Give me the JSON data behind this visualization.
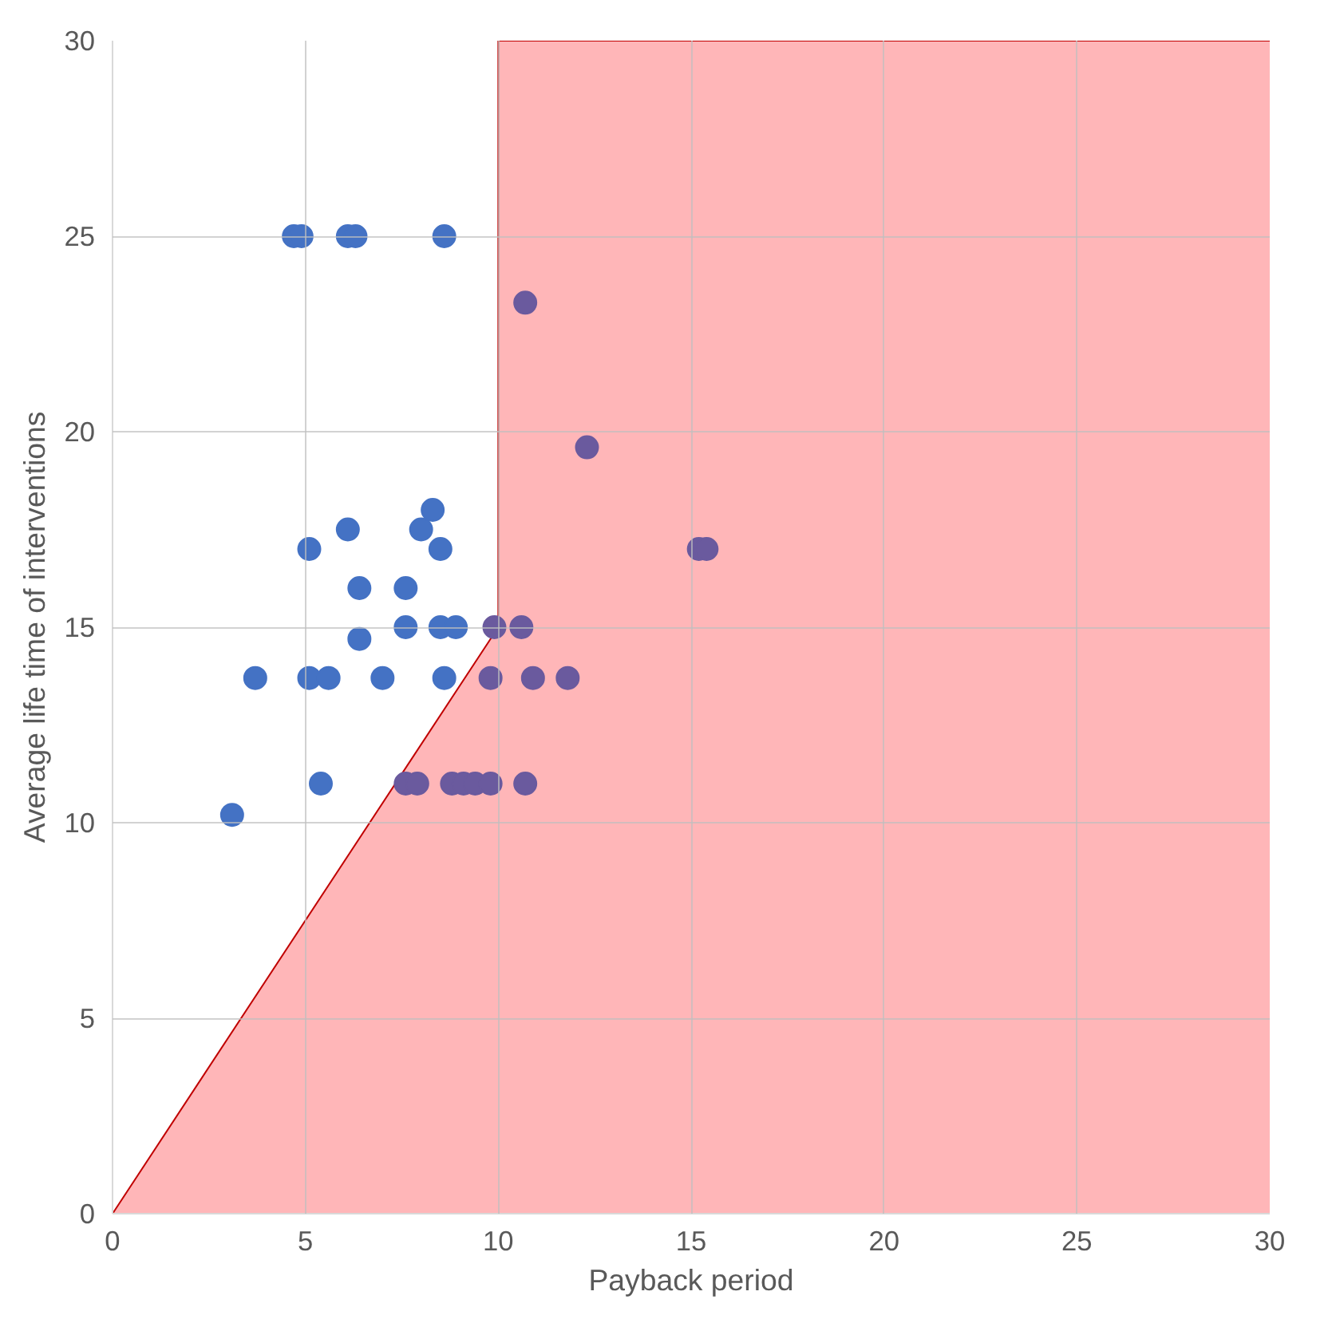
{
  "chart_data": {
    "type": "scatter",
    "xlabel": "Payback period",
    "ylabel": "Average life time of interventions",
    "xlim": [
      0,
      30
    ],
    "ylim": [
      0,
      30
    ],
    "xticks": [
      0,
      5,
      10,
      15,
      20,
      25,
      30
    ],
    "yticks": [
      0,
      5,
      10,
      15,
      20,
      25,
      30
    ],
    "grid": true,
    "marker": "circle",
    "series": [
      {
        "type": "area",
        "marker": "none",
        "color": "#ffb6b8",
        "x": [
          0,
          10,
          10,
          30
        ],
        "values": [
          0,
          15,
          30,
          30
        ]
      },
      {
        "color": "#4472c4",
        "x": [
          4.7,
          4.9,
          6.1,
          6.3,
          8.6,
          5.1,
          6.1,
          8.0,
          8.3,
          8.5,
          6.4,
          7.6,
          6.4,
          7.6,
          8.5,
          8.9,
          3.7,
          5.1,
          5.6,
          7.0,
          8.6,
          5.4,
          3.1
        ],
        "values": [
          25,
          25,
          25,
          25,
          25,
          17.0,
          17.5,
          17.5,
          18.0,
          17.0,
          16.0,
          16.0,
          14.7,
          15,
          15,
          15,
          13.7,
          13.7,
          13.7,
          13.7,
          13.7,
          11,
          10.2
        ]
      },
      {
        "color": "#6a5a9e",
        "x": [
          10.7,
          12.3,
          15.2,
          15.4,
          9.9,
          10.6,
          9.8,
          10.9,
          11.8,
          7.6,
          7.9,
          8.8,
          9.1,
          9.4,
          9.8,
          10.7
        ],
        "values": [
          23.3,
          19.6,
          17,
          17,
          15,
          15,
          13.7,
          13.7,
          13.7,
          11,
          11,
          11,
          11,
          11,
          11,
          11
        ]
      }
    ]
  }
}
